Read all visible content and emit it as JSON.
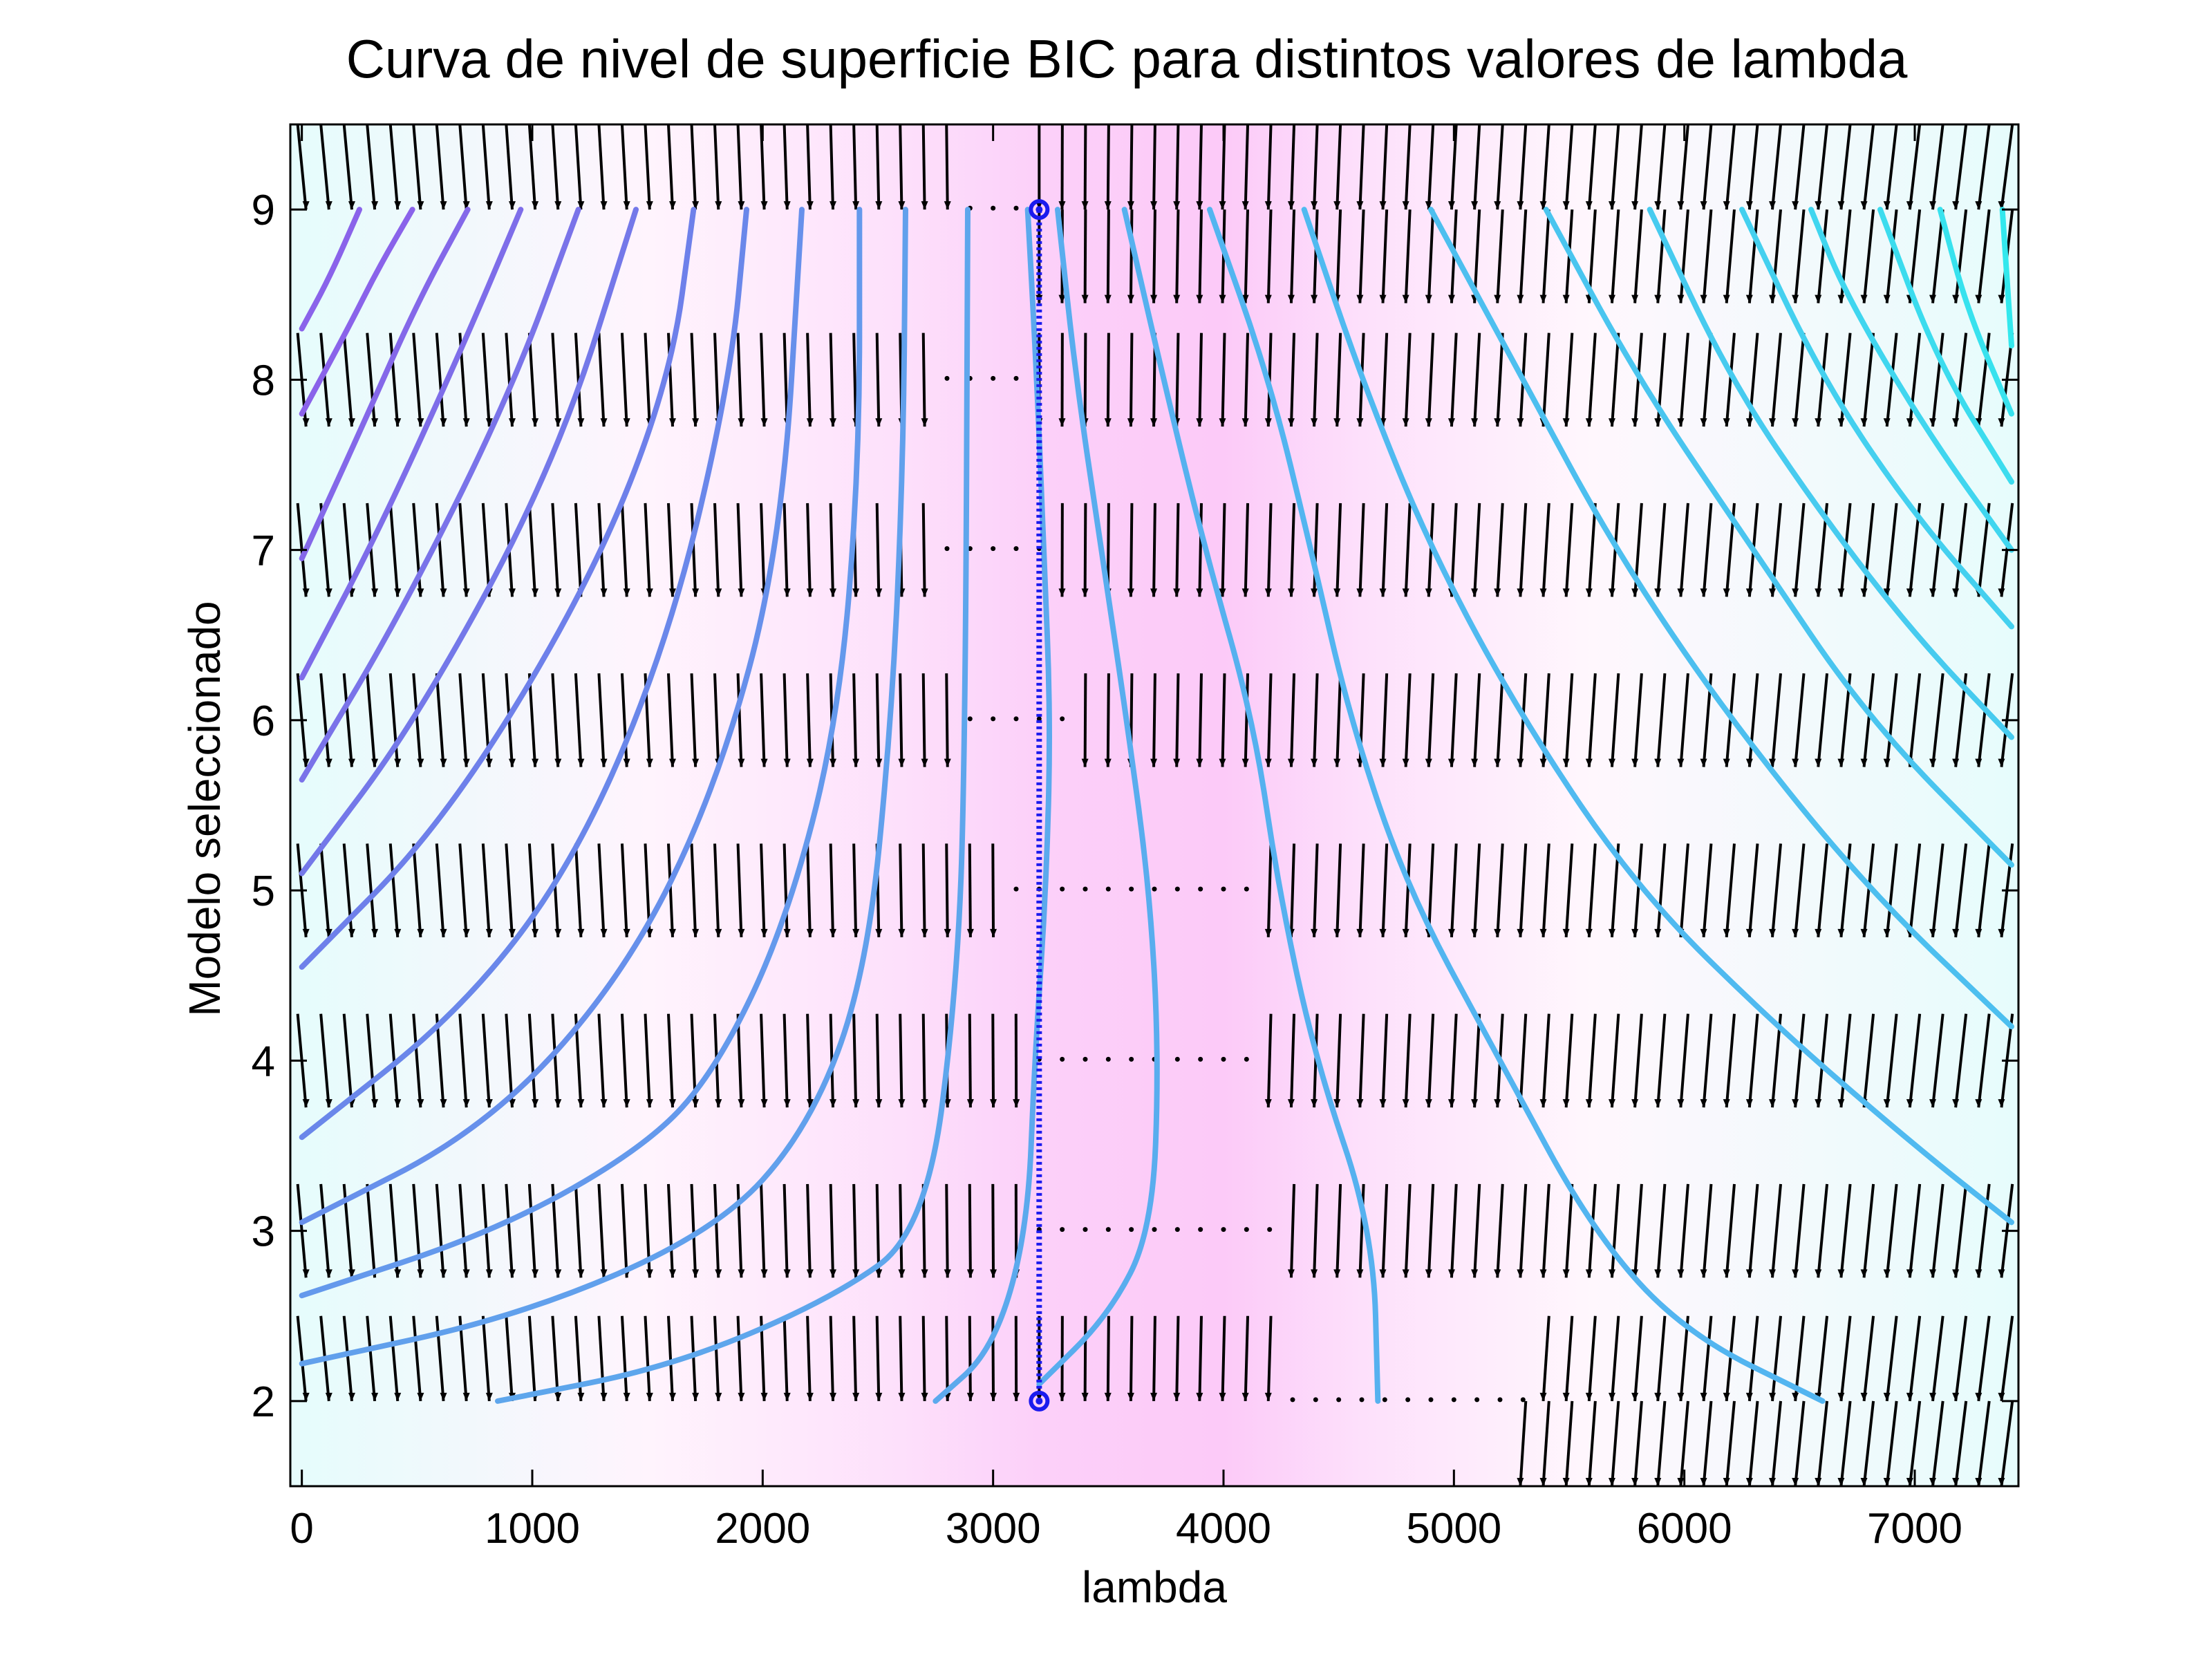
{
  "chart_data": {
    "type": "contour",
    "title": "Curva de nivel de superficie BIC para distintos valores de lambda",
    "xlabel": "lambda",
    "ylabel": "Modelo seleccionado",
    "xlim": [
      -50,
      7450
    ],
    "ylim": [
      1.5,
      9.5
    ],
    "xticks": [
      0,
      1000,
      2000,
      3000,
      4000,
      5000,
      6000,
      7000
    ],
    "yticks": [
      2,
      3,
      4,
      5,
      6,
      7,
      8,
      9
    ],
    "grid": false,
    "legend": "none",
    "background_gradient": {
      "stops": [
        {
          "x": 0,
          "color": "#e6fcfc"
        },
        {
          "x": 1500,
          "color": "#fff4fd"
        },
        {
          "x": 2600,
          "color": "#fde0fb"
        },
        {
          "x": 3200,
          "color": "#fcd0f9"
        },
        {
          "x": 4000,
          "color": "#fccaf8"
        },
        {
          "x": 4600,
          "color": "#fde0fb"
        },
        {
          "x": 5600,
          "color": "#fff7fd"
        },
        {
          "x": 7450,
          "color": "#e6fcfc"
        }
      ]
    },
    "contours": [
      {
        "color": "#8a63ea",
        "points": [
          [
            0,
            8.3
          ],
          [
            120,
            8.6
          ],
          [
            250,
            9.0
          ]
        ]
      },
      {
        "color": "#8a63ea",
        "points": [
          [
            0,
            7.8
          ],
          [
            200,
            8.3
          ],
          [
            330,
            8.65
          ],
          [
            480,
            9.0
          ]
        ]
      },
      {
        "color": "#8468e9",
        "points": [
          [
            0,
            6.95
          ],
          [
            270,
            7.75
          ],
          [
            500,
            8.45
          ],
          [
            720,
            9.0
          ]
        ]
      },
      {
        "color": "#7e6de9",
        "points": [
          [
            0,
            6.25
          ],
          [
            330,
            7.1
          ],
          [
            700,
            8.2
          ],
          [
            950,
            9.0
          ]
        ]
      },
      {
        "color": "#7a73e9",
        "points": [
          [
            0,
            5.65
          ],
          [
            420,
            6.6
          ],
          [
            900,
            7.9
          ],
          [
            1200,
            9.0
          ]
        ]
      },
      {
        "color": "#7478e9",
        "points": [
          [
            0,
            5.1
          ],
          [
            500,
            6.0
          ],
          [
            1100,
            7.5
          ],
          [
            1450,
            9.0
          ]
        ]
      },
      {
        "color": "#6e80ea",
        "points": [
          [
            0,
            4.55
          ],
          [
            620,
            5.4
          ],
          [
            1250,
            6.8
          ],
          [
            1600,
            8.0
          ],
          [
            1700,
            9.0
          ]
        ]
      },
      {
        "color": "#6a87ea",
        "points": [
          [
            0,
            3.55
          ],
          [
            700,
            4.3
          ],
          [
            1200,
            5.2
          ],
          [
            1600,
            6.5
          ],
          [
            1860,
            8.0
          ],
          [
            1930,
            9.0
          ]
        ]
      },
      {
        "color": "#6790eb",
        "points": [
          [
            0,
            3.05
          ],
          [
            800,
            3.6
          ],
          [
            1400,
            4.5
          ],
          [
            1800,
            5.6
          ],
          [
            2080,
            7.0
          ],
          [
            2170,
            9.0
          ]
        ]
      },
      {
        "color": "#6499ec",
        "points": [
          [
            0,
            2.62
          ],
          [
            850,
            3.0
          ],
          [
            1500,
            3.5
          ],
          [
            1800,
            3.95
          ],
          [
            2100,
            4.8
          ],
          [
            2330,
            6.0
          ],
          [
            2420,
            7.5
          ],
          [
            2420,
            9.0
          ]
        ]
      },
      {
        "color": "#61a0ec",
        "points": [
          [
            0,
            2.22
          ],
          [
            950,
            2.5
          ],
          [
            1800,
            3.0
          ],
          [
            2200,
            3.6
          ],
          [
            2450,
            4.5
          ],
          [
            2560,
            6.0
          ],
          [
            2610,
            7.5
          ],
          [
            2620,
            9.0
          ]
        ]
      },
      {
        "color": "#5ea6ec",
        "points": [
          [
            850,
            2.0
          ],
          [
            1600,
            2.2
          ],
          [
            2300,
            2.6
          ],
          [
            2710,
            3.0
          ],
          [
            2850,
            4.5
          ],
          [
            2880,
            6.0
          ],
          [
            2890,
            9.0
          ]
        ]
      },
      {
        "color": "#5ca9ed",
        "points": [
          [
            2750,
            2.0
          ],
          [
            3000,
            2.3
          ],
          [
            3150,
            3.0
          ],
          [
            3180,
            4.0
          ],
          [
            3230,
            5.0
          ],
          [
            3250,
            6.0
          ],
          [
            3220,
            7.0
          ],
          [
            3190,
            8.0
          ],
          [
            3150,
            9.0
          ]
        ]
      },
      {
        "color": "#59adee",
        "points": [
          [
            3200,
            2.1
          ],
          [
            3500,
            2.5
          ],
          [
            3690,
            3.0
          ],
          [
            3720,
            4.0
          ],
          [
            3680,
            5.0
          ],
          [
            3580,
            6.0
          ],
          [
            3470,
            7.0
          ],
          [
            3360,
            8.0
          ],
          [
            3280,
            9.0
          ]
        ]
      },
      {
        "color": "#56b1ef",
        "points": [
          [
            4670,
            2.0
          ],
          [
            4650,
            3.0
          ],
          [
            4400,
            4.0
          ],
          [
            4240,
            5.0
          ],
          [
            4130,
            6.0
          ],
          [
            3920,
            7.0
          ],
          [
            3740,
            8.0
          ],
          [
            3570,
            9.0
          ]
        ]
      },
      {
        "color": "#53b5f0",
        "points": [
          [
            6600,
            2.0
          ],
          [
            6000,
            2.4
          ],
          [
            5600,
            3.0
          ],
          [
            5200,
            4.0
          ],
          [
            4800,
            5.0
          ],
          [
            4550,
            6.0
          ],
          [
            4380,
            7.0
          ],
          [
            4200,
            8.0
          ],
          [
            3940,
            9.0
          ]
        ]
      },
      {
        "color": "#50baf0",
        "points": [
          [
            7420,
            3.05
          ],
          [
            7000,
            3.5
          ],
          [
            6400,
            4.2
          ],
          [
            5800,
            5.0
          ],
          [
            5300,
            6.0
          ],
          [
            4900,
            7.0
          ],
          [
            4600,
            8.0
          ],
          [
            4350,
            9.0
          ]
        ]
      },
      {
        "color": "#4dbfef",
        "points": [
          [
            7420,
            4.2
          ],
          [
            6800,
            5.0
          ],
          [
            6200,
            6.0
          ],
          [
            5700,
            7.0
          ],
          [
            5300,
            8.0
          ],
          [
            4900,
            9.0
          ]
        ]
      },
      {
        "color": "#4ac5ef",
        "points": [
          [
            7420,
            5.15
          ],
          [
            6800,
            6.0
          ],
          [
            6300,
            7.0
          ],
          [
            5800,
            8.0
          ],
          [
            5400,
            9.0
          ]
        ]
      },
      {
        "color": "#47cbef",
        "points": [
          [
            7420,
            5.9
          ],
          [
            7000,
            6.5
          ],
          [
            6600,
            7.2
          ],
          [
            6200,
            8.0
          ],
          [
            5850,
            9.0
          ]
        ]
      },
      {
        "color": "#44d0ef",
        "points": [
          [
            7420,
            6.55
          ],
          [
            7000,
            7.2
          ],
          [
            6600,
            8.0
          ],
          [
            6250,
            9.0
          ]
        ]
      },
      {
        "color": "#40d6ef",
        "points": [
          [
            7420,
            7.0
          ],
          [
            7050,
            7.7
          ],
          [
            6700,
            8.5
          ],
          [
            6550,
            9.0
          ]
        ]
      },
      {
        "color": "#3cdcee",
        "points": [
          [
            7420,
            7.4
          ],
          [
            7100,
            8.1
          ],
          [
            6850,
            9.0
          ]
        ]
      },
      {
        "color": "#38e2ee",
        "points": [
          [
            7420,
            7.8
          ],
          [
            7230,
            8.4
          ],
          [
            7110,
            9.0
          ]
        ]
      },
      {
        "color": "#33e8ed",
        "points": [
          [
            7420,
            8.2
          ],
          [
            7380,
            9.0
          ]
        ]
      }
    ],
    "gradient_arrows": {
      "color": "#000000",
      "rows": [
        {
          "y": 9.0,
          "xmin": 0,
          "xmax": 7420,
          "spacing": 100,
          "length": 0.5,
          "flat_from": 2900,
          "flat_to": 3100,
          "side": "up"
        },
        {
          "y": 9.0,
          "xmin": 3200,
          "xmax": 7420,
          "spacing": 100,
          "length": 0.55,
          "side": "down"
        },
        {
          "y": 8.0,
          "xmin": 0,
          "xmax": 7420,
          "spacing": 100,
          "length": 0.55,
          "flat_from": 2800,
          "flat_to": 3100,
          "side": "both"
        },
        {
          "y": 7.0,
          "xmin": 0,
          "xmax": 7420,
          "spacing": 100,
          "length": 0.55,
          "flat_from": 2800,
          "flat_to": 3200,
          "side": "both"
        },
        {
          "y": 6.0,
          "xmin": 0,
          "xmax": 7420,
          "spacing": 100,
          "length": 0.55,
          "flat_from": 2850,
          "flat_to": 3350,
          "side": "both"
        },
        {
          "y": 5.0,
          "xmin": 0,
          "xmax": 7420,
          "spacing": 100,
          "length": 0.55,
          "flat_from": 3100,
          "flat_to": 4100,
          "side": "both"
        },
        {
          "y": 4.0,
          "xmin": 0,
          "xmax": 7420,
          "spacing": 100,
          "length": 0.55,
          "flat_from": 3200,
          "flat_to": 4100,
          "side": "both"
        },
        {
          "y": 3.0,
          "xmin": 0,
          "xmax": 7420,
          "spacing": 100,
          "length": 0.55,
          "flat_from": 3200,
          "flat_to": 4200,
          "side": "both"
        },
        {
          "y": 2.0,
          "xmin": 0,
          "xmax": 7420,
          "spacing": 100,
          "length": 0.5,
          "flat_from": 4300,
          "flat_to": 5300,
          "side": "up"
        },
        {
          "y": 2.0,
          "xmin": 5300,
          "xmax": 7420,
          "spacing": 100,
          "length": 0.5,
          "side": "down"
        }
      ]
    },
    "optimum_line": {
      "x": 3200,
      "y_from": 2,
      "y_to": 9,
      "color": "#1a1aee",
      "style": "dotted",
      "markers": [
        [
          3200,
          2
        ],
        [
          3200,
          9
        ]
      ]
    }
  }
}
